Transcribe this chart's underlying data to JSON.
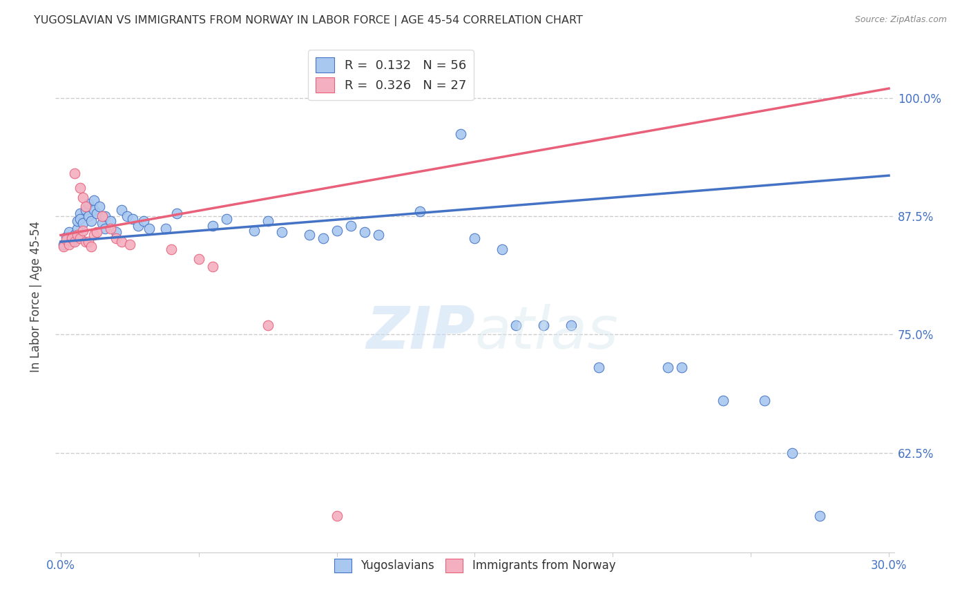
{
  "title": "YUGOSLAVIAN VS IMMIGRANTS FROM NORWAY IN LABOR FORCE | AGE 45-54 CORRELATION CHART",
  "source": "Source: ZipAtlas.com",
  "ylabel": "In Labor Force | Age 45-54",
  "ytick_labels": [
    "100.0%",
    "87.5%",
    "75.0%",
    "62.5%"
  ],
  "ytick_values": [
    1.0,
    0.875,
    0.75,
    0.625
  ],
  "xlim": [
    -0.002,
    0.302
  ],
  "ylim": [
    0.52,
    1.06
  ],
  "legend_blue_R": "0.132",
  "legend_blue_N": "56",
  "legend_pink_R": "0.326",
  "legend_pink_N": "27",
  "blue_scatter": [
    [
      0.001,
      0.845
    ],
    [
      0.002,
      0.853
    ],
    [
      0.003,
      0.858
    ],
    [
      0.004,
      0.848
    ],
    [
      0.005,
      0.855
    ],
    [
      0.006,
      0.862
    ],
    [
      0.006,
      0.87
    ],
    [
      0.007,
      0.878
    ],
    [
      0.007,
      0.872
    ],
    [
      0.008,
      0.868
    ],
    [
      0.009,
      0.882
    ],
    [
      0.01,
      0.888
    ],
    [
      0.01,
      0.875
    ],
    [
      0.011,
      0.87
    ],
    [
      0.012,
      0.892
    ],
    [
      0.012,
      0.882
    ],
    [
      0.013,
      0.878
    ],
    [
      0.014,
      0.885
    ],
    [
      0.015,
      0.868
    ],
    [
      0.016,
      0.875
    ],
    [
      0.016,
      0.862
    ],
    [
      0.018,
      0.87
    ],
    [
      0.02,
      0.858
    ],
    [
      0.022,
      0.882
    ],
    [
      0.024,
      0.875
    ],
    [
      0.026,
      0.872
    ],
    [
      0.028,
      0.865
    ],
    [
      0.03,
      0.87
    ],
    [
      0.032,
      0.862
    ],
    [
      0.038,
      0.862
    ],
    [
      0.042,
      0.878
    ],
    [
      0.055,
      0.865
    ],
    [
      0.06,
      0.872
    ],
    [
      0.07,
      0.86
    ],
    [
      0.075,
      0.87
    ],
    [
      0.08,
      0.858
    ],
    [
      0.09,
      0.855
    ],
    [
      0.095,
      0.852
    ],
    [
      0.1,
      0.86
    ],
    [
      0.105,
      0.865
    ],
    [
      0.11,
      0.858
    ],
    [
      0.115,
      0.855
    ],
    [
      0.13,
      0.88
    ],
    [
      0.145,
      0.962
    ],
    [
      0.15,
      0.852
    ],
    [
      0.16,
      0.84
    ],
    [
      0.165,
      0.76
    ],
    [
      0.175,
      0.76
    ],
    [
      0.185,
      0.76
    ],
    [
      0.195,
      0.715
    ],
    [
      0.22,
      0.715
    ],
    [
      0.225,
      0.715
    ],
    [
      0.24,
      0.68
    ],
    [
      0.255,
      0.68
    ],
    [
      0.265,
      0.625
    ],
    [
      0.275,
      0.558
    ]
  ],
  "pink_scatter": [
    [
      0.001,
      0.843
    ],
    [
      0.002,
      0.85
    ],
    [
      0.003,
      0.845
    ],
    [
      0.004,
      0.852
    ],
    [
      0.005,
      0.848
    ],
    [
      0.006,
      0.855
    ],
    [
      0.007,
      0.852
    ],
    [
      0.008,
      0.86
    ],
    [
      0.009,
      0.848
    ],
    [
      0.01,
      0.848
    ],
    [
      0.011,
      0.843
    ],
    [
      0.012,
      0.855
    ],
    [
      0.013,
      0.858
    ],
    [
      0.005,
      0.92
    ],
    [
      0.007,
      0.905
    ],
    [
      0.008,
      0.895
    ],
    [
      0.009,
      0.885
    ],
    [
      0.015,
      0.875
    ],
    [
      0.018,
      0.862
    ],
    [
      0.02,
      0.852
    ],
    [
      0.022,
      0.848
    ],
    [
      0.025,
      0.845
    ],
    [
      0.04,
      0.84
    ],
    [
      0.05,
      0.83
    ],
    [
      0.055,
      0.822
    ],
    [
      0.075,
      0.76
    ],
    [
      0.1,
      0.558
    ]
  ],
  "blue_line_x": [
    0.0,
    0.3
  ],
  "blue_line_y": [
    0.848,
    0.918
  ],
  "pink_line_x": [
    0.0,
    0.3
  ],
  "pink_line_y": [
    0.855,
    1.01
  ],
  "blue_color": "#A8C8F0",
  "pink_color": "#F4B0C0",
  "blue_line_color": "#4472C4",
  "pink_line_color": "#E8607A",
  "watermark_zip": "ZIP",
  "watermark_atlas": "atlas"
}
